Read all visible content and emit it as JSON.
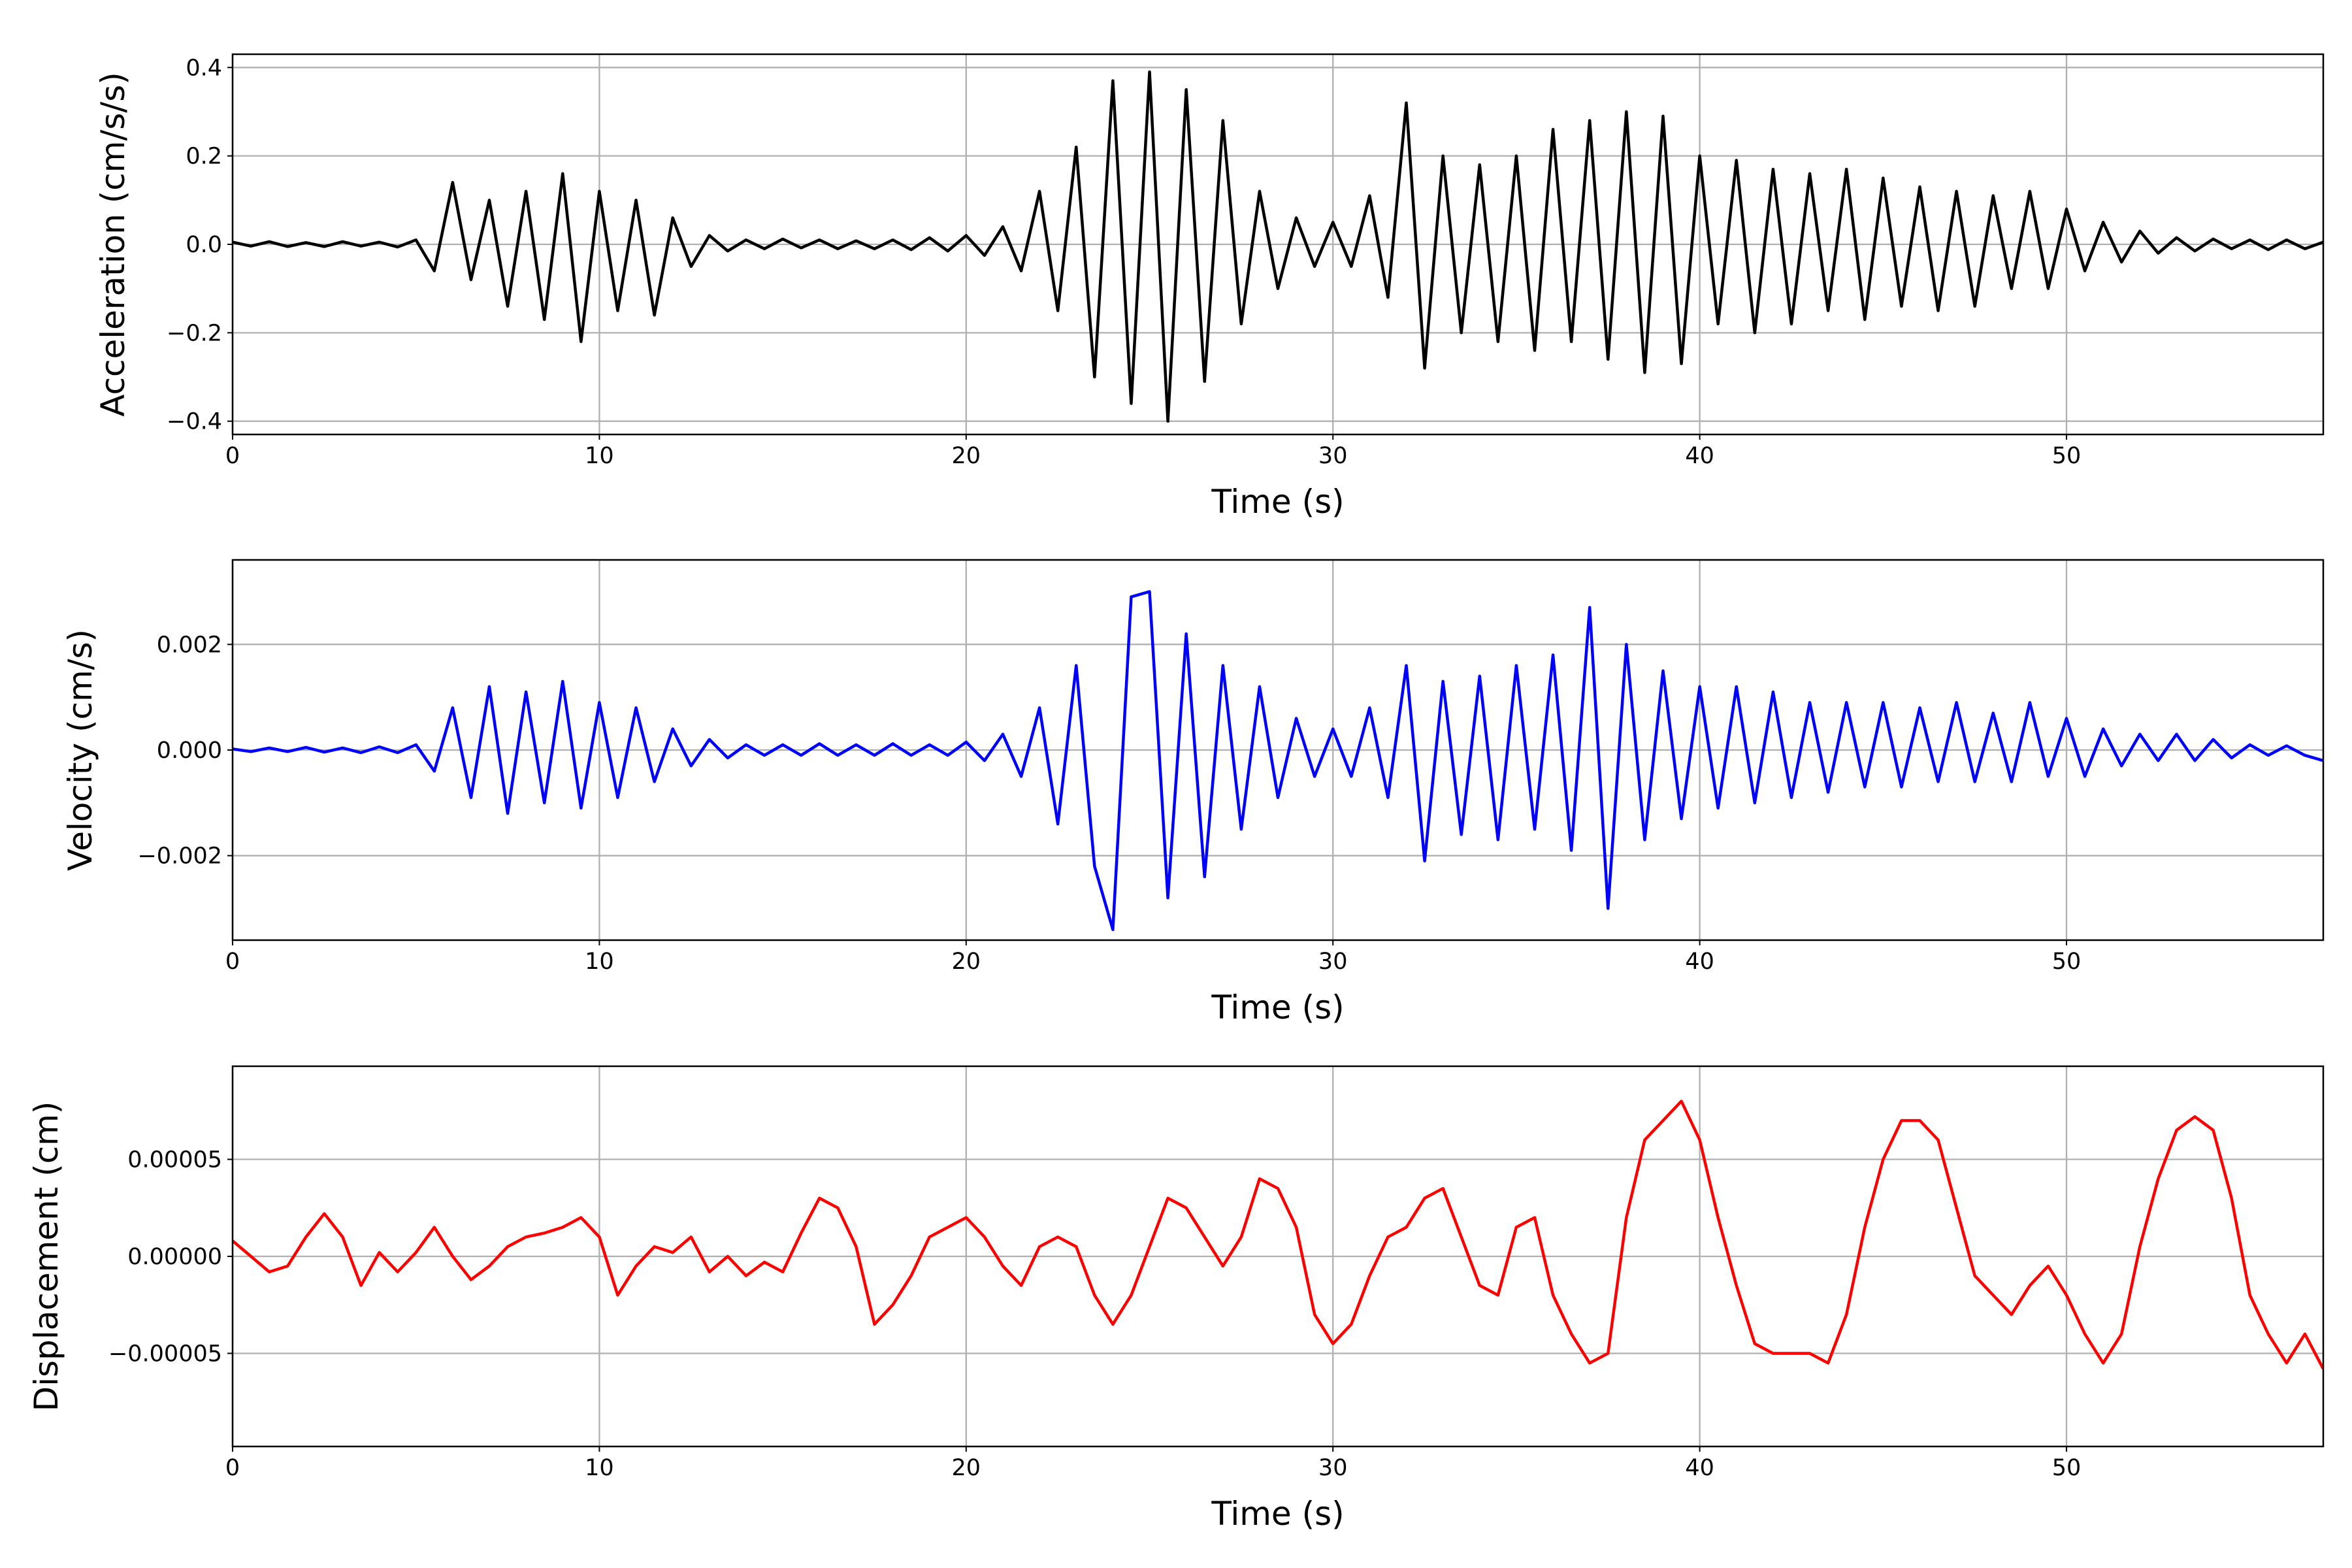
{
  "chart_data": [
    {
      "type": "line",
      "xlabel": "Time (s)",
      "ylabel": "Acceleration (cm/s/s)",
      "x": [
        0,
        0.5,
        1,
        1.5,
        2,
        2.5,
        3,
        3.5,
        4,
        4.5,
        5,
        5.5,
        6,
        6.5,
        7,
        7.5,
        8,
        8.5,
        9,
        9.5,
        10,
        10.5,
        11,
        11.5,
        12,
        12.5,
        13,
        13.5,
        14,
        14.5,
        15,
        15.5,
        16,
        16.5,
        17,
        17.5,
        18,
        18.5,
        19,
        19.5,
        20,
        20.5,
        21,
        21.5,
        22,
        22.5,
        23,
        23.5,
        24,
        24.5,
        25,
        25.5,
        26,
        26.5,
        27,
        27.5,
        28,
        28.5,
        29,
        29.5,
        30,
        30.5,
        31,
        31.5,
        32,
        32.5,
        33,
        33.5,
        34,
        34.5,
        35,
        35.5,
        36,
        36.5,
        37,
        37.5,
        38,
        38.5,
        39,
        39.5,
        40,
        40.5,
        41,
        41.5,
        42,
        42.5,
        43,
        43.5,
        44,
        44.5,
        45,
        45.5,
        46,
        46.5,
        47,
        47.5,
        48,
        48.5,
        49,
        49.5,
        50,
        50.5,
        51,
        51.5,
        52,
        52.5,
        53,
        53.5,
        54,
        54.5,
        55,
        55.5,
        56,
        56.5,
        57
      ],
      "series": [
        {
          "color": "#000000",
          "values": [
            0.005,
            -0.004,
            0.006,
            -0.005,
            0.004,
            -0.005,
            0.006,
            -0.004,
            0.005,
            -0.006,
            0.01,
            -0.06,
            0.14,
            -0.08,
            0.1,
            -0.14,
            0.12,
            -0.17,
            0.16,
            -0.22,
            0.12,
            -0.15,
            0.1,
            -0.16,
            0.06,
            -0.05,
            0.02,
            -0.015,
            0.01,
            -0.01,
            0.012,
            -0.008,
            0.01,
            -0.01,
            0.008,
            -0.01,
            0.01,
            -0.012,
            0.015,
            -0.015,
            0.02,
            -0.025,
            0.04,
            -0.06,
            0.12,
            -0.15,
            0.22,
            -0.3,
            0.37,
            -0.36,
            0.39,
            -0.4,
            0.35,
            -0.31,
            0.28,
            -0.18,
            0.12,
            -0.1,
            0.06,
            -0.05,
            0.05,
            -0.05,
            0.11,
            -0.12,
            0.32,
            -0.28,
            0.2,
            -0.2,
            0.18,
            -0.22,
            0.2,
            -0.24,
            0.26,
            -0.22,
            0.28,
            -0.26,
            0.3,
            -0.29,
            0.29,
            -0.27,
            0.2,
            -0.18,
            0.19,
            -0.2,
            0.17,
            -0.18,
            0.16,
            -0.15,
            0.17,
            -0.17,
            0.15,
            -0.14,
            0.13,
            -0.15,
            0.12,
            -0.14,
            0.11,
            -0.1,
            0.12,
            -0.1,
            0.08,
            -0.06,
            0.05,
            -0.04,
            0.03,
            -0.02,
            0.015,
            -0.015,
            0.012,
            -0.01,
            0.01,
            -0.012,
            0.01,
            -0.01,
            0.005
          ]
        }
      ],
      "xlim": [
        0,
        57
      ],
      "xticks": [
        0,
        10,
        20,
        30,
        40,
        50
      ],
      "ylim": [
        -0.43,
        0.43
      ],
      "yticks": [
        {
          "value": -0.4,
          "label": "−0.4"
        },
        {
          "value": -0.2,
          "label": "−0.2"
        },
        {
          "value": 0,
          "label": "0.0"
        },
        0.2,
        0.4
      ],
      "grid": true
    },
    {
      "type": "line",
      "xlabel": "Time (s)",
      "ylabel": "Velocity (cm/s)",
      "x": [
        0,
        0.5,
        1,
        1.5,
        2,
        2.5,
        3,
        3.5,
        4,
        4.5,
        5,
        5.5,
        6,
        6.5,
        7,
        7.5,
        8,
        8.5,
        9,
        9.5,
        10,
        10.5,
        11,
        11.5,
        12,
        12.5,
        13,
        13.5,
        14,
        14.5,
        15,
        15.5,
        16,
        16.5,
        17,
        17.5,
        18,
        18.5,
        19,
        19.5,
        20,
        20.5,
        21,
        21.5,
        22,
        22.5,
        23,
        23.5,
        24,
        24.5,
        25,
        25.5,
        26,
        26.5,
        27,
        27.5,
        28,
        28.5,
        29,
        29.5,
        30,
        30.5,
        31,
        31.5,
        32,
        32.5,
        33,
        33.5,
        34,
        34.5,
        35,
        35.5,
        36,
        36.5,
        37,
        37.5,
        38,
        38.5,
        39,
        39.5,
        40,
        40.5,
        41,
        41.5,
        42,
        42.5,
        43,
        43.5,
        44,
        44.5,
        45,
        45.5,
        46,
        46.5,
        47,
        47.5,
        48,
        48.5,
        49,
        49.5,
        50,
        50.5,
        51,
        51.5,
        52,
        52.5,
        53,
        53.5,
        54,
        54.5,
        55,
        55.5,
        56,
        56.5,
        57
      ],
      "series": [
        {
          "color": "#0000ff",
          "values": [
            2e-05,
            -3e-05,
            4e-05,
            -3e-05,
            5e-05,
            -4e-05,
            4e-05,
            -5e-05,
            6e-05,
            -5e-05,
            0.0001,
            -0.0004,
            0.0008,
            -0.0009,
            0.0012,
            -0.0012,
            0.0011,
            -0.001,
            0.0013,
            -0.0011,
            0.0009,
            -0.0009,
            0.0008,
            -0.0006,
            0.0004,
            -0.0003,
            0.0002,
            -0.00015,
            0.0001,
            -0.0001,
            0.0001,
            -0.0001,
            0.00012,
            -0.0001,
            0.0001,
            -0.0001,
            0.00012,
            -0.0001,
            0.0001,
            -0.0001,
            0.00015,
            -0.0002,
            0.0003,
            -0.0005,
            0.0008,
            -0.0014,
            0.0016,
            -0.0022,
            -0.0034,
            0.0029,
            0.003,
            -0.0028,
            0.0022,
            -0.0024,
            0.0016,
            -0.0015,
            0.0012,
            -0.0009,
            0.0006,
            -0.0005,
            0.0004,
            -0.0005,
            0.0008,
            -0.0009,
            0.0016,
            -0.0021,
            0.0013,
            -0.0016,
            0.0014,
            -0.0017,
            0.0016,
            -0.0015,
            0.0018,
            -0.0019,
            0.0027,
            -0.003,
            0.002,
            -0.0017,
            0.0015,
            -0.0013,
            0.0012,
            -0.0011,
            0.0012,
            -0.001,
            0.0011,
            -0.0009,
            0.0009,
            -0.0008,
            0.0009,
            -0.0007,
            0.0009,
            -0.0007,
            0.0008,
            -0.0006,
            0.0009,
            -0.0006,
            0.0007,
            -0.0006,
            0.0009,
            -0.0005,
            0.0006,
            -0.0005,
            0.0004,
            -0.0003,
            0.0003,
            -0.0002,
            0.0003,
            -0.0002,
            0.0002,
            -0.00015,
            0.0001,
            -0.0001,
            8e-05,
            -0.0001,
            -0.0002
          ]
        }
      ],
      "xlim": [
        0,
        57
      ],
      "xticks": [
        0,
        10,
        20,
        30,
        40,
        50
      ],
      "ylim": [
        -0.0036,
        0.0036
      ],
      "yticks": [
        {
          "value": -0.002,
          "label": "−0.002"
        },
        {
          "value": 0,
          "label": "0.000"
        },
        0.002
      ],
      "grid": true
    },
    {
      "type": "line",
      "xlabel": "Time (s)",
      "ylabel": "Displacement (cm)",
      "x": [
        0,
        0.5,
        1,
        1.5,
        2,
        2.5,
        3,
        3.5,
        4,
        4.5,
        5,
        5.5,
        6,
        6.5,
        7,
        7.5,
        8,
        8.5,
        9,
        9.5,
        10,
        10.5,
        11,
        11.5,
        12,
        12.5,
        13,
        13.5,
        14,
        14.5,
        15,
        15.5,
        16,
        16.5,
        17,
        17.5,
        18,
        18.5,
        19,
        19.5,
        20,
        20.5,
        21,
        21.5,
        22,
        22.5,
        23,
        23.5,
        24,
        24.5,
        25,
        25.5,
        26,
        26.5,
        27,
        27.5,
        28,
        28.5,
        29,
        29.5,
        30,
        30.5,
        31,
        31.5,
        32,
        32.5,
        33,
        33.5,
        34,
        34.5,
        35,
        35.5,
        36,
        36.5,
        37,
        37.5,
        38,
        38.5,
        39,
        39.5,
        40,
        40.5,
        41,
        41.5,
        42,
        42.5,
        43,
        43.5,
        44,
        44.5,
        45,
        45.5,
        46,
        46.5,
        47,
        47.5,
        48,
        48.5,
        49,
        49.5,
        50,
        50.5,
        51,
        51.5,
        52,
        52.5,
        53,
        53.5,
        54,
        54.5,
        55,
        55.5,
        56,
        56.5,
        57
      ],
      "series": [
        {
          "color": "#ff0000",
          "values": [
            8e-06,
            0,
            -8e-06,
            -5e-06,
            1e-05,
            2.2e-05,
            1e-05,
            -1.5e-05,
            2e-06,
            -8e-06,
            2e-06,
            1.5e-05,
            0,
            -1.2e-05,
            -5e-06,
            5e-06,
            1e-05,
            1.2e-05,
            1.5e-05,
            2e-05,
            1e-05,
            -2e-05,
            -5e-06,
            5e-06,
            2e-06,
            1e-05,
            -8e-06,
            0,
            -1e-05,
            -3e-06,
            -8e-06,
            1.2e-05,
            3e-05,
            2.5e-05,
            5e-06,
            -3.5e-05,
            -2.5e-05,
            -1e-05,
            1e-05,
            1.5e-05,
            2e-05,
            1e-05,
            -5e-06,
            -1.5e-05,
            5e-06,
            1e-05,
            5e-06,
            -2e-05,
            -3.5e-05,
            -2e-05,
            5e-06,
            3e-05,
            2.5e-05,
            1e-05,
            -5e-06,
            1e-05,
            4e-05,
            3.5e-05,
            1.5e-05,
            -3e-05,
            -4.5e-05,
            -3.5e-05,
            -1e-05,
            1e-05,
            1.5e-05,
            3e-05,
            3.5e-05,
            1e-05,
            -1.5e-05,
            -2e-05,
            1.5e-05,
            2e-05,
            -2e-05,
            -4e-05,
            -5.5e-05,
            -5e-05,
            2e-05,
            6e-05,
            7e-05,
            8e-05,
            6e-05,
            2e-05,
            -1.5e-05,
            -4.5e-05,
            -5e-05,
            -5e-05,
            -5e-05,
            -5.5e-05,
            -3e-05,
            1.5e-05,
            5e-05,
            7e-05,
            7e-05,
            6e-05,
            2.5e-05,
            -1e-05,
            -2e-05,
            -3e-05,
            -1.5e-05,
            -5e-06,
            -2e-05,
            -4e-05,
            -5.5e-05,
            -4e-05,
            5e-06,
            4e-05,
            6.5e-05,
            7.2e-05,
            6.5e-05,
            3e-05,
            -2e-05,
            -4e-05,
            -5.5e-05,
            -4e-05,
            -5.8e-05
          ]
        }
      ],
      "xlim": [
        0,
        57
      ],
      "xticks": [
        0,
        10,
        20,
        30,
        40,
        50
      ],
      "ylim": [
        -9.8e-05,
        9.8e-05
      ],
      "yticks": [
        {
          "value": -5e-05,
          "label": "−0.00005"
        },
        {
          "value": 0,
          "label": "0.00000"
        },
        5e-05
      ],
      "grid": true
    }
  ]
}
